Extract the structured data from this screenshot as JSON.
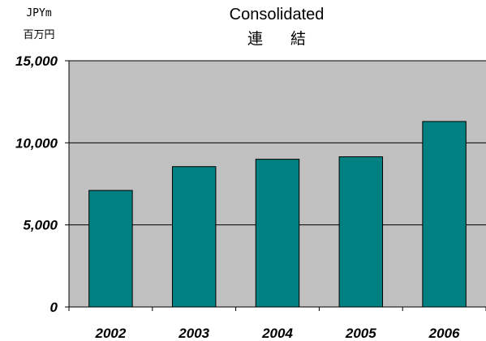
{
  "chart_data": {
    "type": "bar",
    "title": "Consolidated",
    "subtitle": "連 結",
    "unit_label_en": "JPYm",
    "unit_label_ja": "百万円",
    "xlabel": "",
    "ylabel": "",
    "categories": [
      "2002",
      "2003",
      "2004",
      "2005",
      "2006"
    ],
    "values": [
      7100,
      8550,
      9000,
      9150,
      11300
    ],
    "ylim": [
      0,
      15000
    ],
    "yticks": [
      0,
      5000,
      10000,
      15000
    ],
    "ytick_labels": [
      "0",
      "5,000",
      "10,000",
      "15,000"
    ],
    "grid": true,
    "legend": "none",
    "colors": {
      "bar": "#008080",
      "plot_background": "#c0c0c0",
      "gridline": "#000000",
      "axis": "#000000"
    }
  }
}
